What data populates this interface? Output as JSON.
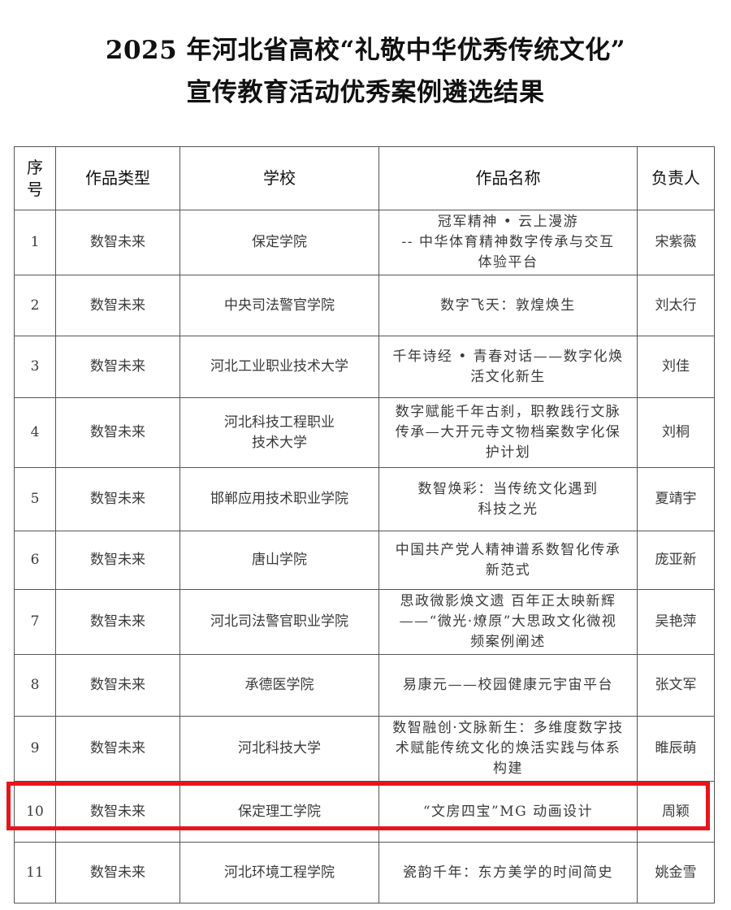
{
  "title": {
    "line1": "2025 年河北省高校“礼敬中华优秀传统文化”",
    "line2": "宣传教育活动优秀案例遴选结果"
  },
  "table": {
    "headers": [
      "序号",
      "作品类型",
      "学校",
      "作品名称",
      "负责人"
    ],
    "rows": [
      {
        "no": "1",
        "type": "数智未来",
        "school": "保定学院",
        "work": "冠军精神 • 云上漫游\n-- 中华体育精神数字传承与交互\n体验平台",
        "lead": "宋紫薇"
      },
      {
        "no": "2",
        "type": "数智未来",
        "school": "中央司法警官学院",
        "work": "数字飞天：敦煌焕生",
        "lead": "刘太行"
      },
      {
        "no": "3",
        "type": "数智未来",
        "school": "河北工业职业技术大学",
        "work": "千年诗经 • 青春对话——数字化焕\n活文化新生",
        "lead": "刘佳"
      },
      {
        "no": "4",
        "type": "数智未来",
        "school": "河北科技工程职业\n技术大学",
        "work": "数字赋能千年古刹，职教践行文脉\n传承—大开元寺文物档案数字化保\n护计划",
        "lead": "刘桐"
      },
      {
        "no": "5",
        "type": "数智未来",
        "school": "邯郸应用技术职业学院",
        "work": "数智焕彩：当传统文化遇到\n科技之光",
        "lead": "夏靖宇"
      },
      {
        "no": "6",
        "type": "数智未来",
        "school": "唐山学院",
        "work": "中国共产党人精神谱系数智化传承\n新范式",
        "lead": "庞亚新"
      },
      {
        "no": "7",
        "type": "数智未来",
        "school": "河北司法警官职业学院",
        "work": "思政微影焕文遗 百年正太映新辉\n——“微光·燎原”大思政文化微视\n频案例阐述",
        "lead": "吴艳萍"
      },
      {
        "no": "8",
        "type": "数智未来",
        "school": "承德医学院",
        "work": "易康元——校园健康元宇宙平台",
        "lead": "张文军"
      },
      {
        "no": "9",
        "type": "数智未来",
        "school": "河北科技大学",
        "work": "数智融创·文脉新生：多维度数字技\n术赋能传统文化的焕活实践与体系\n构建",
        "lead": "睢辰萌"
      },
      {
        "no": "10",
        "type": "数智未来",
        "school": "保定理工学院",
        "work": "“文房四宝”MG 动画设计",
        "lead": "周颖"
      },
      {
        "no": "11",
        "type": "数智未来",
        "school": "河北环境工程学院",
        "work": "瓷韵千年：东方美学的时间简史",
        "lead": "姚金雪"
      }
    ],
    "highlighted_row": "10",
    "highlight_color": "#e8141b"
  }
}
